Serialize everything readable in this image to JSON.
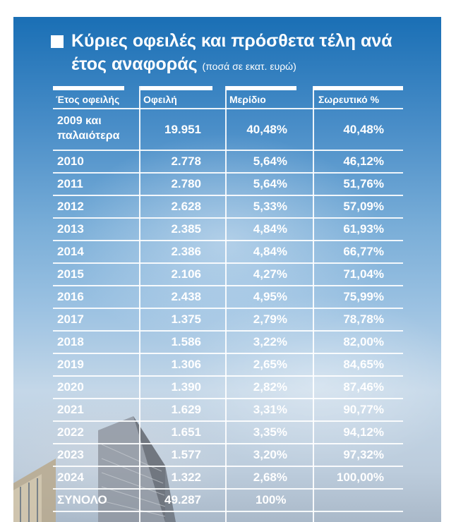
{
  "title": {
    "line1": "Κύριες οφειλές και πρόσθετα τέλη ανά",
    "line2": "έτος αναφοράς",
    "note": "(ποσά σε εκατ. ευρώ)"
  },
  "chart_data": {
    "type": "table",
    "columns": [
      "Έτος οφειλής",
      "Οφειλή",
      "Μερίδιο",
      "Σωρευτικό %"
    ],
    "rows": [
      [
        "2009 και παλαιότερα",
        "19.951",
        "40,48%",
        "40,48%"
      ],
      [
        "2010",
        "2.778",
        "5,64%",
        "46,12%"
      ],
      [
        "2011",
        "2.780",
        "5,64%",
        "51,76%"
      ],
      [
        "2012",
        "2.628",
        "5,33%",
        "57,09%"
      ],
      [
        "2013",
        "2.385",
        "4,84%",
        "61,93%"
      ],
      [
        "2014",
        "2.386",
        "4,84%",
        "66,77%"
      ],
      [
        "2015",
        "2.106",
        "4,27%",
        "71,04%"
      ],
      [
        "2016",
        "2.438",
        "4,95%",
        "75,99%"
      ],
      [
        "2017",
        "1.375",
        "2,79%",
        "78,78%"
      ],
      [
        "2018",
        "1.586",
        "3,22%",
        "82,00%"
      ],
      [
        "2019",
        "1.306",
        "2,65%",
        "84,65%"
      ],
      [
        "2020",
        "1.390",
        "2,82%",
        "87,46%"
      ],
      [
        "2021",
        "1.629",
        "3,31%",
        "90,77%"
      ],
      [
        "2022",
        "1.651",
        "3,35%",
        "94,12%"
      ],
      [
        "2023",
        "1.577",
        "3,20%",
        "97,32%"
      ],
      [
        "2024",
        "1.322",
        "2,68%",
        "100,00%"
      ]
    ],
    "total": [
      "ΣΥΝΟΛΟ",
      "49.287",
      "100%",
      ""
    ]
  }
}
